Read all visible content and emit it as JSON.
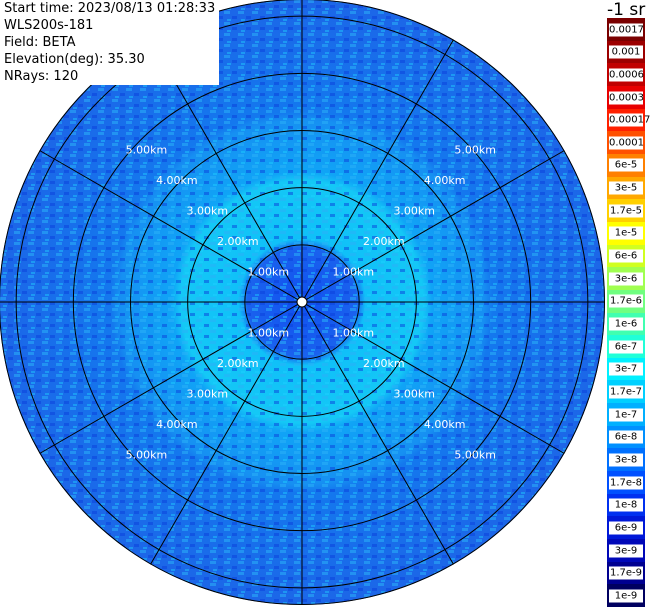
{
  "header": {
    "start_time": "Start time: 2023/08/13 01:28:33",
    "instrument": "WLS200s-181",
    "field": "Field: BETA",
    "elevation": "Elevation(deg): 35.30",
    "nrays": "NRays: 120"
  },
  "units_label": "-1 sr",
  "range_rings": [
    {
      "label": "1.00km",
      "value_km": 1
    },
    {
      "label": "2.00km",
      "value_km": 2
    },
    {
      "label": "3.00km",
      "value_km": 3
    },
    {
      "label": "4.00km",
      "value_km": 4
    },
    {
      "label": "5.00km",
      "value_km": 5
    }
  ],
  "max_range_km": 5.3,
  "spokes_deg": [
    0,
    30,
    60,
    90,
    120,
    150
  ],
  "colorbar": [
    {
      "label": "0.0017",
      "color": "#7a0000"
    },
    {
      "label": "0.001",
      "color": "#9c0000"
    },
    {
      "label": "0.0006",
      "color": "#c00000"
    },
    {
      "label": "0.0003",
      "color": "#e80000"
    },
    {
      "label": "0.00017",
      "color": "#ff2000"
    },
    {
      "label": "0.0001",
      "color": "#ff5000"
    },
    {
      "label": "6e-5",
      "color": "#ff8000"
    },
    {
      "label": "3e-5",
      "color": "#ffa800"
    },
    {
      "label": "1.7e-5",
      "color": "#ffd000"
    },
    {
      "label": "1e-5",
      "color": "#ffff00"
    },
    {
      "label": "6e-6",
      "color": "#d0ff20"
    },
    {
      "label": "3e-6",
      "color": "#a0ff50"
    },
    {
      "label": "1.7e-6",
      "color": "#70ff80"
    },
    {
      "label": "1e-6",
      "color": "#40ffb0"
    },
    {
      "label": "6e-7",
      "color": "#20ffd8"
    },
    {
      "label": "3e-7",
      "color": "#00f0ff"
    },
    {
      "label": "1.7e-7",
      "color": "#00d0ff"
    },
    {
      "label": "1e-7",
      "color": "#00b0ff"
    },
    {
      "label": "6e-8",
      "color": "#0090ff"
    },
    {
      "label": "3e-8",
      "color": "#0070ff"
    },
    {
      "label": "1.7e-8",
      "color": "#0050ff"
    },
    {
      "label": "1e-8",
      "color": "#0030f0"
    },
    {
      "label": "6e-9",
      "color": "#0018d8"
    },
    {
      "label": "3e-9",
      "color": "#0008b8"
    },
    {
      "label": "1.7e-9",
      "color": "#000090"
    },
    {
      "label": "1e-9",
      "color": "#000060"
    }
  ]
}
